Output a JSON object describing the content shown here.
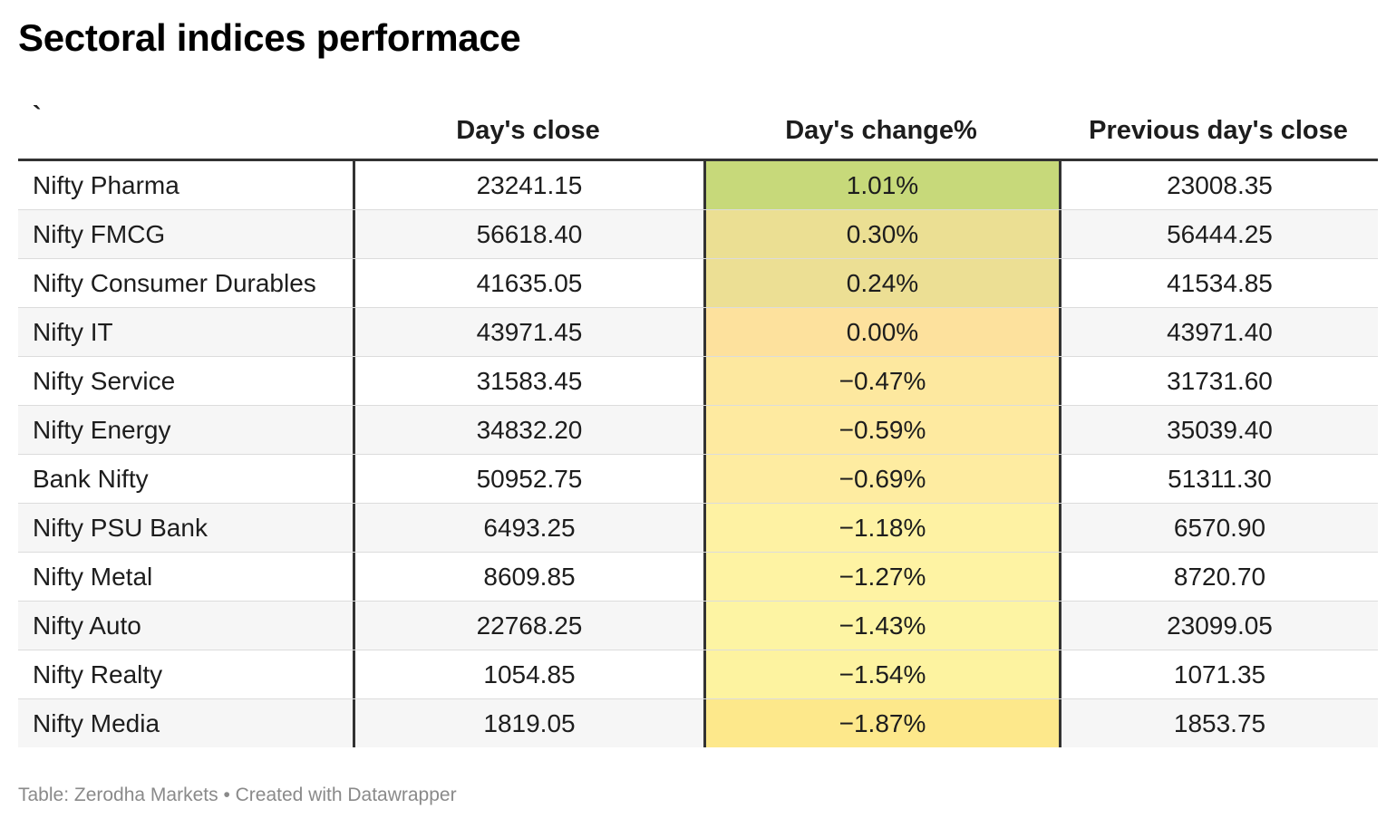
{
  "title": "Sectoral indices performace",
  "footer": {
    "source_label": "Table: Zerodha Markets",
    "separator": " • ",
    "credit": "Created with Datawrapper"
  },
  "colors": {
    "header_rule": "#333333",
    "row_stripe": "#f6f6f6",
    "scale": {
      "max_positive": "#c7d97a",
      "low_positive": "#ede08f",
      "zero": "#fde19d",
      "small_negative": "#feeda3",
      "large_negative": "#fdf4a3",
      "min_negative": "#fde88b"
    }
  },
  "chart_data": {
    "type": "table",
    "title": "Sectoral indices performace",
    "columns": [
      "`",
      "Day's close",
      "Day's change%",
      "Previous day's close"
    ],
    "rows": [
      {
        "name": "Nifty Pharma",
        "close": "23241.15",
        "change": "1.01%",
        "change_value": 1.01,
        "prev": "23008.35",
        "color": "#c7d97a"
      },
      {
        "name": "Nifty FMCG",
        "close": "56618.40",
        "change": "0.30%",
        "change_value": 0.3,
        "prev": "56444.25",
        "color": "#ebdf93"
      },
      {
        "name": "Nifty Consumer Durables",
        "close": "41635.05",
        "change": "0.24%",
        "change_value": 0.24,
        "prev": "41534.85",
        "color": "#ecdf94"
      },
      {
        "name": "Nifty IT",
        "close": "43971.45",
        "change": "0.00%",
        "change_value": 0.0,
        "prev": "43971.40",
        "color": "#fde19d"
      },
      {
        "name": "Nifty Service",
        "close": "31583.45",
        "change": "−0.47%",
        "change_value": -0.47,
        "prev": "31731.60",
        "color": "#fde89f"
      },
      {
        "name": "Nifty Energy",
        "close": "34832.20",
        "change": "−0.59%",
        "change_value": -0.59,
        "prev": "35039.40",
        "color": "#feeaa0"
      },
      {
        "name": "Bank Nifty",
        "close": "50952.75",
        "change": "−0.69%",
        "change_value": -0.69,
        "prev": "51311.30",
        "color": "#feeca1"
      },
      {
        "name": "Nifty PSU Bank",
        "close": "6493.25",
        "change": "−1.18%",
        "change_value": -1.18,
        "prev": "6570.90",
        "color": "#fef2a3"
      },
      {
        "name": "Nifty Metal",
        "close": "8609.85",
        "change": "−1.27%",
        "change_value": -1.27,
        "prev": "8720.70",
        "color": "#fef3a3"
      },
      {
        "name": "Nifty Auto",
        "close": "22768.25",
        "change": "−1.43%",
        "change_value": -1.43,
        "prev": "23099.05",
        "color": "#fdf4a3"
      },
      {
        "name": "Nifty Realty",
        "close": "1054.85",
        "change": "−1.54%",
        "change_value": -1.54,
        "prev": "1071.35",
        "color": "#fdf3a0"
      },
      {
        "name": "Nifty Media",
        "close": "1819.05",
        "change": "−1.87%",
        "change_value": -1.87,
        "prev": "1853.75",
        "color": "#fde88b"
      }
    ]
  }
}
